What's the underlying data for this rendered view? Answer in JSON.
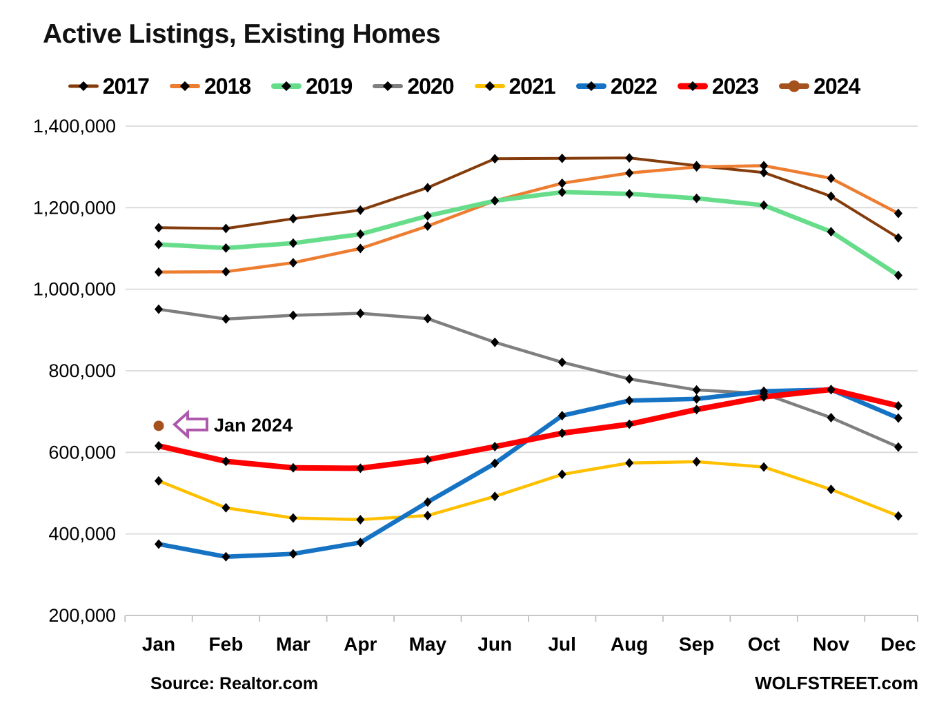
{
  "page": {
    "title": "Active Listings, Existing Homes",
    "source_credit": "Source: Realtor.com",
    "site_credit": "WOLFSTREET.com"
  },
  "colors": {
    "background": "#FFFFFF",
    "grid": "#D9D9D9",
    "axis": "#BFBFBF",
    "marker": "#000000",
    "text": "#000000",
    "annotation": "#AE58AC"
  },
  "chart_data": {
    "type": "line",
    "title": "Active Listings, Existing Homes",
    "xlabel": "",
    "ylabel": "",
    "categories": [
      "Jan",
      "Feb",
      "Mar",
      "Apr",
      "May",
      "Jun",
      "Jul",
      "Aug",
      "Sep",
      "Oct",
      "Nov",
      "Dec"
    ],
    "ylim": [
      200000,
      1400000
    ],
    "ytick_interval": 200000,
    "ytick_labels": [
      "1,400,000",
      "1,200,000",
      "1,000,000",
      "800,000",
      "600,000",
      "400,000",
      "200,000"
    ],
    "grid": "horizontal-only",
    "legend_position": "top",
    "series": [
      {
        "name": "2017",
        "color": "#843C0C",
        "line_width": 4,
        "marker": "diamond",
        "marker_color": "#000000",
        "values": [
          1151000,
          1149000,
          1173000,
          1194000,
          1249000,
          1320000,
          1321000,
          1322000,
          1303000,
          1286000,
          1228000,
          1126000
        ]
      },
      {
        "name": "2018",
        "color": "#ED7D31",
        "line_width": 4.5,
        "marker": "diamond",
        "marker_color": "#000000",
        "values": [
          1042000,
          1043000,
          1065000,
          1100000,
          1155000,
          1217000,
          1260000,
          1285000,
          1300000,
          1303000,
          1272000,
          1186000
        ]
      },
      {
        "name": "2019",
        "color": "#67DD8B",
        "line_width": 6.5,
        "marker": "diamond",
        "marker_color": "#000000",
        "values": [
          1110000,
          1101000,
          1113000,
          1135000,
          1180000,
          1217000,
          1238000,
          1234000,
          1223000,
          1206000,
          1141000,
          1034000
        ]
      },
      {
        "name": "2020",
        "color": "#7F7F7F",
        "line_width": 4.5,
        "marker": "diamond",
        "marker_color": "#000000",
        "values": [
          951000,
          927000,
          936000,
          941000,
          928000,
          870000,
          821000,
          780000,
          753000,
          744000,
          685000,
          613000
        ]
      },
      {
        "name": "2021",
        "color": "#FFC000",
        "line_width": 4.5,
        "marker": "diamond",
        "marker_color": "#000000",
        "values": [
          530000,
          464000,
          439000,
          435000,
          445000,
          492000,
          546000,
          574000,
          577000,
          564000,
          509000,
          444000
        ]
      },
      {
        "name": "2022",
        "color": "#1673C4",
        "line_width": 6.5,
        "marker": "diamond",
        "marker_color": "#000000",
        "values": [
          375000,
          344000,
          351000,
          379000,
          478000,
          573000,
          690000,
          727000,
          731000,
          750000,
          754000,
          684000
        ]
      },
      {
        "name": "2023",
        "color": "#FF0000",
        "line_width": 8,
        "marker": "diamond",
        "marker_color": "#000000",
        "values": [
          616000,
          578000,
          562000,
          561000,
          582000,
          614000,
          647000,
          669000,
          705000,
          736000,
          754000,
          714000
        ]
      },
      {
        "name": "2024",
        "color": "#A5511D",
        "line_width": 7,
        "marker": "circle",
        "marker_color": "#A5511D",
        "values": [
          665000
        ]
      }
    ],
    "annotation": {
      "text": "Jan 2024",
      "series": "2024",
      "point_index": 0,
      "color": "#AE58AC",
      "arrow": "block-arrow-left"
    }
  }
}
